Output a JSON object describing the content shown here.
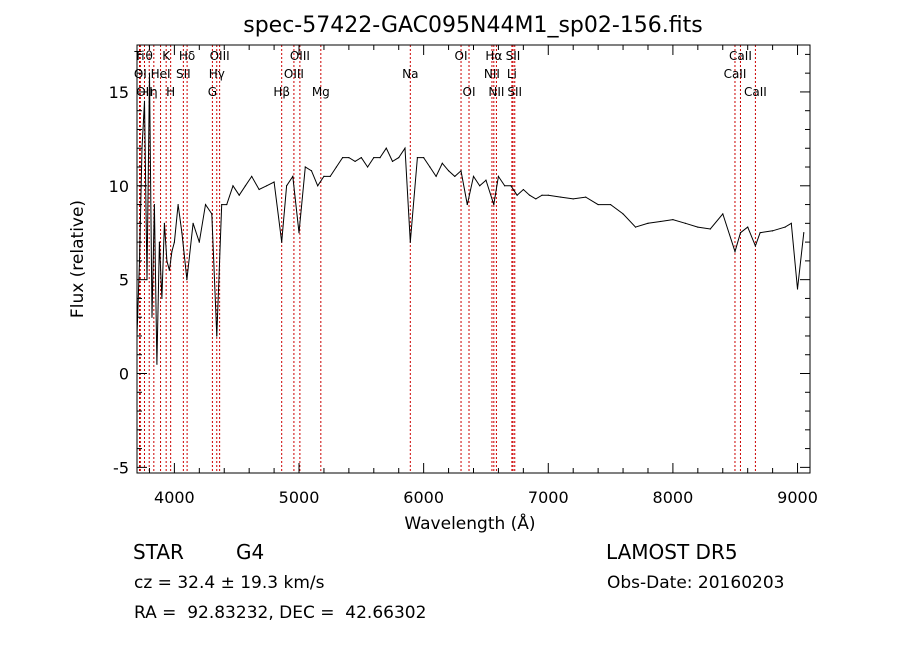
{
  "chart_data": {
    "type": "line",
    "title": "spec-57422-GAC095N44M1_sp02-156.fits",
    "xlabel": "Wavelength (Å)",
    "ylabel": "Flux (relative)",
    "xlim": [
      3700,
      9100
    ],
    "ylim": [
      -5.3,
      17.5
    ],
    "xticks": [
      4000,
      5000,
      6000,
      7000,
      8000,
      9000
    ],
    "yticks": [
      -5,
      0,
      5,
      10,
      15
    ],
    "grid": false,
    "series": [
      {
        "color": "#000000",
        "x": [
          3700,
          3720,
          3740,
          3760,
          3780,
          3800,
          3820,
          3840,
          3860,
          3880,
          3900,
          3920,
          3940,
          3960,
          3980,
          4000,
          4030,
          4060,
          4100,
          4150,
          4200,
          4250,
          4300,
          4340,
          4380,
          4420,
          4470,
          4520,
          4570,
          4620,
          4680,
          4740,
          4800,
          4861,
          4900,
          4950,
          5000,
          5050,
          5100,
          5150,
          5200,
          5250,
          5300,
          5350,
          5400,
          5450,
          5500,
          5550,
          5600,
          5650,
          5700,
          5750,
          5800,
          5850,
          5893,
          5950,
          6000,
          6050,
          6100,
          6150,
          6200,
          6250,
          6300,
          6350,
          6400,
          6450,
          6500,
          6563,
          6600,
          6650,
          6700,
          6750,
          6800,
          6850,
          6900,
          6950,
          7000,
          7100,
          7200,
          7300,
          7400,
          7500,
          7600,
          7700,
          7800,
          7900,
          8000,
          8100,
          8200,
          8300,
          8400,
          8498,
          8542,
          8600,
          8662,
          8700,
          8800,
          8900,
          8950,
          9000,
          9050
        ],
        "y": [
          2.0,
          6.0,
          12.0,
          14.5,
          5.0,
          16.0,
          3.0,
          9.0,
          0.5,
          7.0,
          4.0,
          8.0,
          6.0,
          5.5,
          6.5,
          7.0,
          9.0,
          7.5,
          5.0,
          8.0,
          7.0,
          9.0,
          8.5,
          2.0,
          9.0,
          9.0,
          10.0,
          9.5,
          10.0,
          10.5,
          9.8,
          10.0,
          10.2,
          7.0,
          10.0,
          10.5,
          7.5,
          11.0,
          10.8,
          10.0,
          10.5,
          10.5,
          11.0,
          11.5,
          11.5,
          11.3,
          11.5,
          11.0,
          11.5,
          11.5,
          12.0,
          11.3,
          11.5,
          12.0,
          7.0,
          11.5,
          11.5,
          11.0,
          10.5,
          11.2,
          10.8,
          10.5,
          10.8,
          9.0,
          10.5,
          10.0,
          10.3,
          9.0,
          10.5,
          10.0,
          10.0,
          9.5,
          9.8,
          9.5,
          9.3,
          9.5,
          9.5,
          9.4,
          9.3,
          9.4,
          9.0,
          9.0,
          8.5,
          7.8,
          8.0,
          8.1,
          8.2,
          8.0,
          7.8,
          7.7,
          8.5,
          6.5,
          7.5,
          7.8,
          6.8,
          7.5,
          7.6,
          7.8,
          8.0,
          4.5,
          7.5
        ]
      }
    ],
    "lines": [
      {
        "label": "Ti",
        "x": 3720,
        "row": 0
      },
      {
        "label": "θ",
        "x": 3798,
        "row": 0
      },
      {
        "label": "K",
        "x": 3934,
        "row": 0
      },
      {
        "label": "Hδ",
        "x": 4102,
        "row": 0
      },
      {
        "label": "OIII",
        "x": 4363,
        "row": 0
      },
      {
        "label": "OIII",
        "x": 5007,
        "row": 0
      },
      {
        "label": "OI",
        "x": 6300,
        "row": 0
      },
      {
        "label": "Hα",
        "x": 6563,
        "row": 0
      },
      {
        "label": "SII",
        "x": 6717,
        "row": 0
      },
      {
        "label": "CaII",
        "x": 8542,
        "row": 0
      },
      {
        "label": "OI",
        "x": 3727,
        "row": 1
      },
      {
        "label": "HeI",
        "x": 3889,
        "row": 1
      },
      {
        "label": "SII",
        "x": 4072,
        "row": 1
      },
      {
        "label": "Hγ",
        "x": 4340,
        "row": 1
      },
      {
        "label": "OIII",
        "x": 4959,
        "row": 1
      },
      {
        "label": "Na",
        "x": 5893,
        "row": 1
      },
      {
        "label": "NII",
        "x": 6548,
        "row": 1
      },
      {
        "label": "Li",
        "x": 6708,
        "row": 1
      },
      {
        "label": "CaII",
        "x": 8498,
        "row": 1
      },
      {
        "label": "OII",
        "x": 3760,
        "row": 2
      },
      {
        "label": "η",
        "x": 3835,
        "row": 2
      },
      {
        "label": "H",
        "x": 3970,
        "row": 2
      },
      {
        "label": "G",
        "x": 4305,
        "row": 2
      },
      {
        "label": "Hβ",
        "x": 4861,
        "row": 2
      },
      {
        "label": "Mg",
        "x": 5175,
        "row": 2
      },
      {
        "label": "OI",
        "x": 6364,
        "row": 2
      },
      {
        "label": "NII",
        "x": 6584,
        "row": 2
      },
      {
        "label": "SII",
        "x": 6731,
        "row": 2
      },
      {
        "label": "CaII",
        "x": 8662,
        "row": 2
      }
    ],
    "line_marker_color": "#cc0000"
  },
  "info": {
    "class": "STAR",
    "subclass": "G4",
    "survey": "LAMOST DR5",
    "cz": "cz = 32.4 ± 19.3 km/s",
    "obs_date": "Obs-Date: 20160203",
    "coords": "RA =  92.83232, DEC =  42.66302"
  }
}
